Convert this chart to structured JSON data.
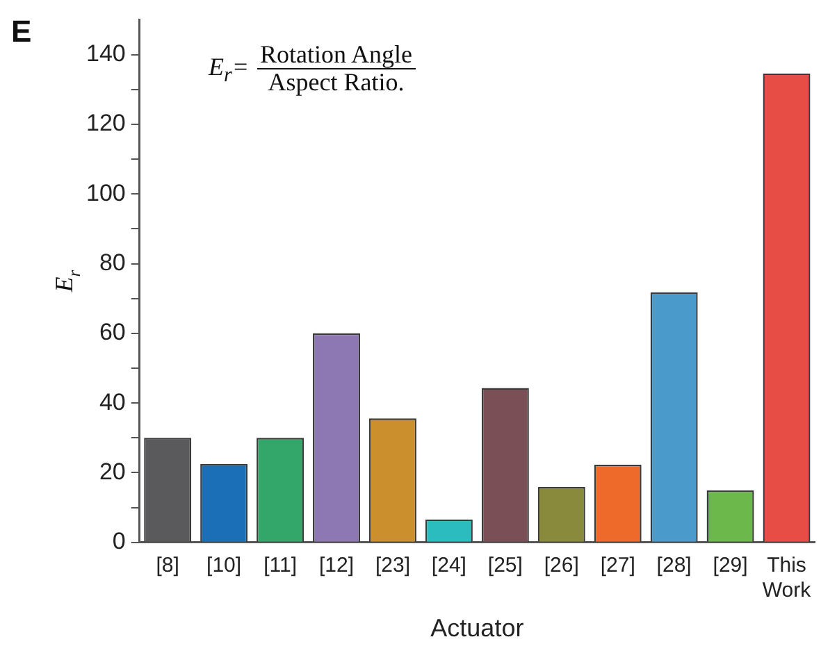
{
  "chart_data": {
    "type": "bar",
    "xlabel": "Actuator",
    "ylabel": "E$_{r}$",
    "categories": [
      "[8]",
      "[10]",
      "[11]",
      "[12]",
      "[23]",
      "[24]",
      "[25]",
      "[26]",
      "[27]",
      "[28]",
      "[29]",
      "This Work"
    ],
    "values": [
      30,
      22.5,
      30,
      60,
      35.6,
      6.6,
      44.3,
      15.9,
      22.3,
      71.8,
      14.9,
      134.6
    ],
    "colors": [
      "#5a5a5c",
      "#1a6fb6",
      "#33a66a",
      "#8e78b3",
      "#cc8f2e",
      "#2bbcbf",
      "#7a4f55",
      "#8a8a3c",
      "#ee6a2a",
      "#4a9acb",
      "#6cb84a",
      "#e84d45"
    ],
    "ylim": [
      0,
      150
    ],
    "yticks": [
      0,
      {
        "value": 10,
        "label": null
      },
      20,
      {
        "value": 30,
        "label": null
      },
      40,
      {
        "value": 50,
        "label": null
      },
      60,
      {
        "value": 70,
        "label": null
      },
      80,
      {
        "value": 90,
        "label": null
      },
      100,
      {
        "value": 110,
        "label": null
      },
      120,
      {
        "value": 130,
        "label": null
      },
      140
    ],
    "grid": false,
    "legend": false,
    "annotations": [
      "E",
      "E$_{r}$=",
      "Rotation Angle",
      "Aspect Ratio."
    ]
  }
}
